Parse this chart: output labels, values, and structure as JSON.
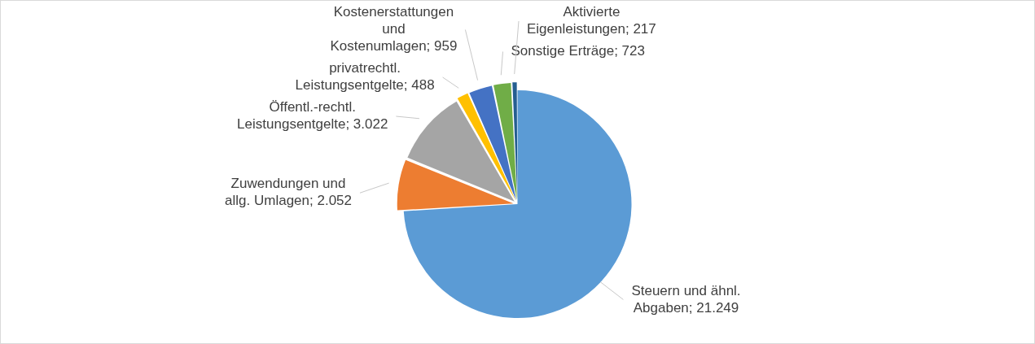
{
  "chart_data": {
    "type": "pie",
    "categories": [
      "Steuern und ähnl. Abgaben",
      "Zuwendungen und allg. Umlagen",
      "Öffentl.-rechtl. Leistungsentgelte",
      "privatrechtl. Leistungsentgelte",
      "Kostenerstattungen und Kostenumlagen",
      "Sonstige Erträge",
      "Aktivierte Eigenleistungen"
    ],
    "values": [
      21249,
      2052,
      3022,
      488,
      959,
      723,
      217
    ],
    "colors": [
      "#5b9bd5",
      "#ed7d31",
      "#a5a5a5",
      "#ffc000",
      "#4472c4",
      "#70ad47",
      "#255e91"
    ],
    "value_labels": [
      "21.249",
      "2.052",
      "3.022",
      "488",
      "959",
      "723",
      "217"
    ],
    "legend": false
  }
}
